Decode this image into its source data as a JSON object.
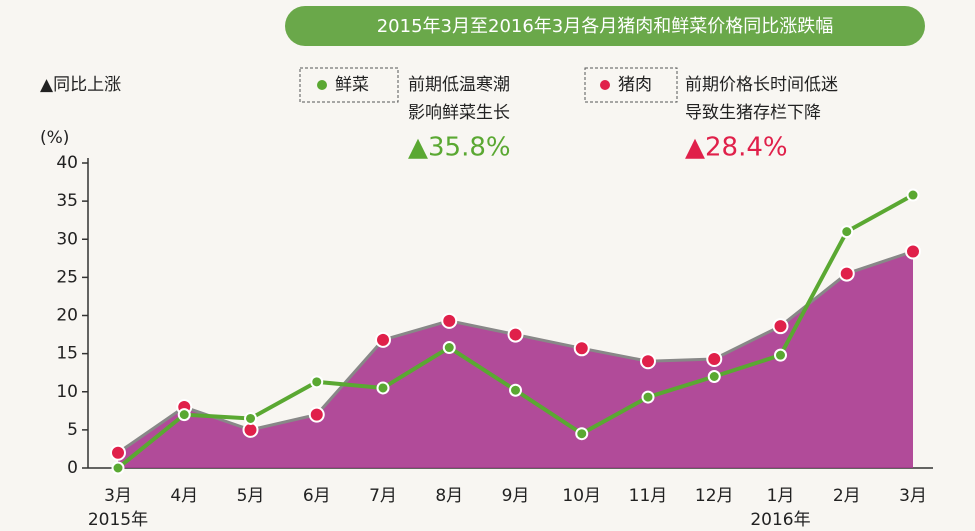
{
  "chart_data": {
    "type": "line",
    "title": "2015年3月至2016年3月各月猪肉和鲜菜价格同比涨跌幅",
    "subtitle": "▲同比上涨",
    "y_label": "(%)",
    "categories": [
      "3月",
      "4月",
      "5月",
      "6月",
      "7月",
      "8月",
      "9月",
      "10月",
      "11月",
      "12月",
      "1月",
      "2月",
      "3月"
    ],
    "category_sublabels": [
      "2015年",
      null,
      null,
      null,
      null,
      null,
      null,
      null,
      null,
      null,
      "2016年",
      null,
      null
    ],
    "series": [
      {
        "name": "鲜菜",
        "color": "#5aa832",
        "values": [
          0,
          7,
          6.5,
          11.3,
          10.5,
          15.8,
          10.2,
          4.5,
          9.3,
          12,
          14.8,
          31,
          35.8
        ]
      },
      {
        "name": "猪肉",
        "color": "#e0204a",
        "area_color": "#a8398f",
        "values": [
          2,
          8,
          5,
          7,
          16.8,
          19.3,
          17.5,
          15.7,
          14,
          14.3,
          18.6,
          25.5,
          28.4
        ]
      }
    ],
    "annotations": [
      {
        "lines": [
          "前期低温寒潮",
          "影响鲜菜生长"
        ],
        "label": "▲35.8%"
      },
      {
        "lines": [
          "前期价格长时间低迷",
          "导致生猪存栏下降"
        ],
        "label": "▲28.4%"
      }
    ],
    "ylim": [
      0,
      40
    ],
    "yticks": [
      0,
      5,
      10,
      15,
      20,
      25,
      30,
      35,
      40
    ],
    "grid": false
  }
}
